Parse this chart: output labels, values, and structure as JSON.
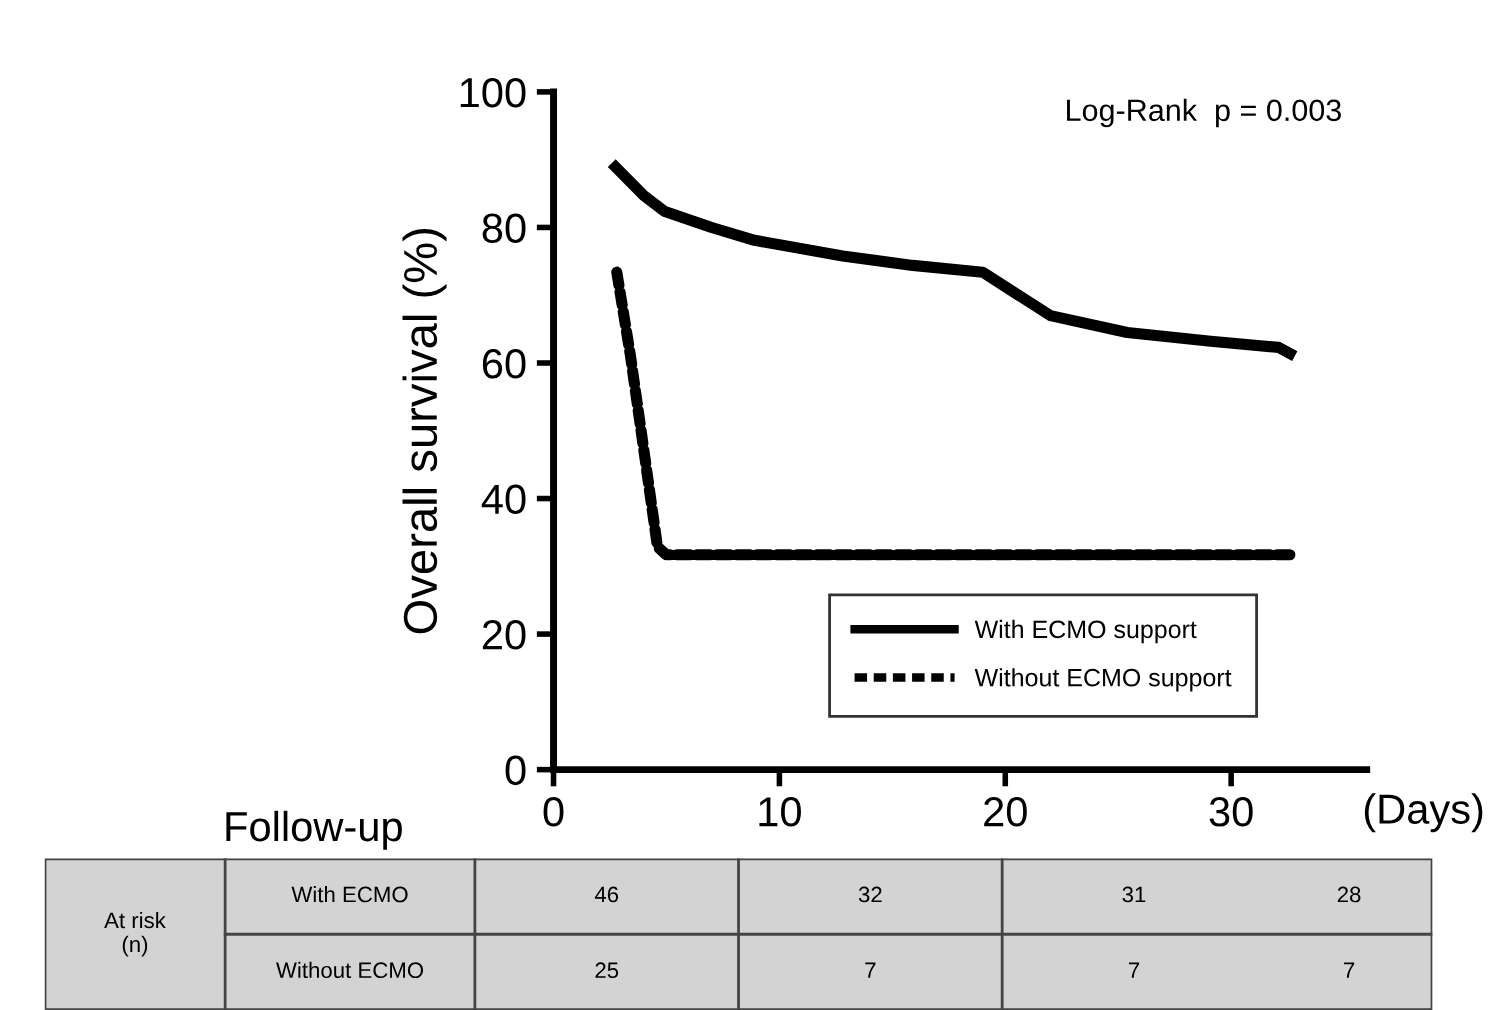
{
  "chart_data": {
    "type": "line",
    "ylabel": "Overall survival (%)",
    "xlabel": "(Days)",
    "xlim": [
      0,
      36
    ],
    "xticks": [
      0,
      10,
      20,
      30
    ],
    "ylim": [
      0,
      100
    ],
    "yticks": [
      0,
      20,
      40,
      60,
      80,
      100
    ],
    "grid": false,
    "legend": "bottom right",
    "marker": "none",
    "series": [
      {
        "name": "With ECMO support",
        "color": "#000000",
        "line_style": "solid",
        "x": [
          2.75,
          4.0,
          4.9,
          7.0,
          8.9,
          12.8,
          15.9,
          19.0,
          22.0,
          25.4,
          29.1,
          32.1,
          32.6
        ],
        "values": [
          88.9,
          84.7,
          82.4,
          80,
          78.1,
          75.8,
          74.4,
          73.4,
          67.0,
          64.5,
          63.2,
          62.3,
          61.4
        ]
      },
      {
        "name": "Without ECMO support",
        "color": "#000000",
        "line_style": "dotted",
        "x": [
          2.8,
          3.4,
          4.0,
          4.6,
          5.0,
          32.6
        ],
        "values": [
          73.4,
          61.2,
          47.1,
          32.9,
          31.7,
          31.7
        ]
      }
    ],
    "annotations": [
      "Log-Rank  p = 0.003",
      "Follow-up",
      "At risk (n)",
      "With ECMO",
      "Without ECMO",
      "46",
      "32",
      "31",
      "28",
      "25",
      "7",
      "7",
      "7"
    ]
  }
}
